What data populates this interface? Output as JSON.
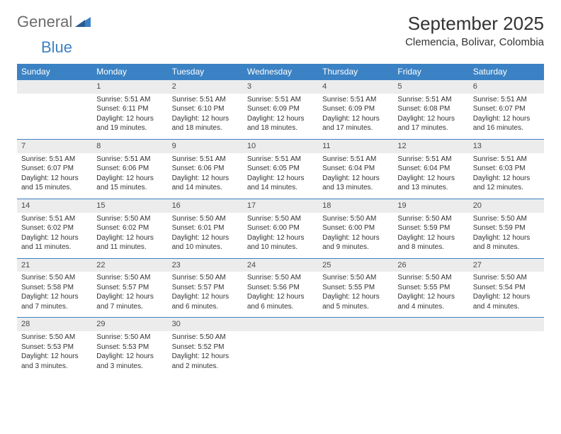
{
  "logo": {
    "text1": "General",
    "text2": "Blue"
  },
  "title": "September 2025",
  "location": "Clemencia, Bolivar, Colombia",
  "day_headers": [
    "Sunday",
    "Monday",
    "Tuesday",
    "Wednesday",
    "Thursday",
    "Friday",
    "Saturday"
  ],
  "colors": {
    "header_bg": "#3b82c4",
    "header_text": "#ffffff",
    "daynum_bg": "#ececec",
    "body_text": "#333333",
    "rule": "#3b82c4"
  },
  "weeks": [
    {
      "nums": [
        "",
        "1",
        "2",
        "3",
        "4",
        "5",
        "6"
      ],
      "info": [
        [],
        [
          "Sunrise: 5:51 AM",
          "Sunset: 6:11 PM",
          "Daylight: 12 hours",
          "and 19 minutes."
        ],
        [
          "Sunrise: 5:51 AM",
          "Sunset: 6:10 PM",
          "Daylight: 12 hours",
          "and 18 minutes."
        ],
        [
          "Sunrise: 5:51 AM",
          "Sunset: 6:09 PM",
          "Daylight: 12 hours",
          "and 18 minutes."
        ],
        [
          "Sunrise: 5:51 AM",
          "Sunset: 6:09 PM",
          "Daylight: 12 hours",
          "and 17 minutes."
        ],
        [
          "Sunrise: 5:51 AM",
          "Sunset: 6:08 PM",
          "Daylight: 12 hours",
          "and 17 minutes."
        ],
        [
          "Sunrise: 5:51 AM",
          "Sunset: 6:07 PM",
          "Daylight: 12 hours",
          "and 16 minutes."
        ]
      ]
    },
    {
      "nums": [
        "7",
        "8",
        "9",
        "10",
        "11",
        "12",
        "13"
      ],
      "info": [
        [
          "Sunrise: 5:51 AM",
          "Sunset: 6:07 PM",
          "Daylight: 12 hours",
          "and 15 minutes."
        ],
        [
          "Sunrise: 5:51 AM",
          "Sunset: 6:06 PM",
          "Daylight: 12 hours",
          "and 15 minutes."
        ],
        [
          "Sunrise: 5:51 AM",
          "Sunset: 6:06 PM",
          "Daylight: 12 hours",
          "and 14 minutes."
        ],
        [
          "Sunrise: 5:51 AM",
          "Sunset: 6:05 PM",
          "Daylight: 12 hours",
          "and 14 minutes."
        ],
        [
          "Sunrise: 5:51 AM",
          "Sunset: 6:04 PM",
          "Daylight: 12 hours",
          "and 13 minutes."
        ],
        [
          "Sunrise: 5:51 AM",
          "Sunset: 6:04 PM",
          "Daylight: 12 hours",
          "and 13 minutes."
        ],
        [
          "Sunrise: 5:51 AM",
          "Sunset: 6:03 PM",
          "Daylight: 12 hours",
          "and 12 minutes."
        ]
      ]
    },
    {
      "nums": [
        "14",
        "15",
        "16",
        "17",
        "18",
        "19",
        "20"
      ],
      "info": [
        [
          "Sunrise: 5:51 AM",
          "Sunset: 6:02 PM",
          "Daylight: 12 hours",
          "and 11 minutes."
        ],
        [
          "Sunrise: 5:50 AM",
          "Sunset: 6:02 PM",
          "Daylight: 12 hours",
          "and 11 minutes."
        ],
        [
          "Sunrise: 5:50 AM",
          "Sunset: 6:01 PM",
          "Daylight: 12 hours",
          "and 10 minutes."
        ],
        [
          "Sunrise: 5:50 AM",
          "Sunset: 6:00 PM",
          "Daylight: 12 hours",
          "and 10 minutes."
        ],
        [
          "Sunrise: 5:50 AM",
          "Sunset: 6:00 PM",
          "Daylight: 12 hours",
          "and 9 minutes."
        ],
        [
          "Sunrise: 5:50 AM",
          "Sunset: 5:59 PM",
          "Daylight: 12 hours",
          "and 8 minutes."
        ],
        [
          "Sunrise: 5:50 AM",
          "Sunset: 5:59 PM",
          "Daylight: 12 hours",
          "and 8 minutes."
        ]
      ]
    },
    {
      "nums": [
        "21",
        "22",
        "23",
        "24",
        "25",
        "26",
        "27"
      ],
      "info": [
        [
          "Sunrise: 5:50 AM",
          "Sunset: 5:58 PM",
          "Daylight: 12 hours",
          "and 7 minutes."
        ],
        [
          "Sunrise: 5:50 AM",
          "Sunset: 5:57 PM",
          "Daylight: 12 hours",
          "and 7 minutes."
        ],
        [
          "Sunrise: 5:50 AM",
          "Sunset: 5:57 PM",
          "Daylight: 12 hours",
          "and 6 minutes."
        ],
        [
          "Sunrise: 5:50 AM",
          "Sunset: 5:56 PM",
          "Daylight: 12 hours",
          "and 6 minutes."
        ],
        [
          "Sunrise: 5:50 AM",
          "Sunset: 5:55 PM",
          "Daylight: 12 hours",
          "and 5 minutes."
        ],
        [
          "Sunrise: 5:50 AM",
          "Sunset: 5:55 PM",
          "Daylight: 12 hours",
          "and 4 minutes."
        ],
        [
          "Sunrise: 5:50 AM",
          "Sunset: 5:54 PM",
          "Daylight: 12 hours",
          "and 4 minutes."
        ]
      ]
    },
    {
      "nums": [
        "28",
        "29",
        "30",
        "",
        "",
        "",
        ""
      ],
      "info": [
        [
          "Sunrise: 5:50 AM",
          "Sunset: 5:53 PM",
          "Daylight: 12 hours",
          "and 3 minutes."
        ],
        [
          "Sunrise: 5:50 AM",
          "Sunset: 5:53 PM",
          "Daylight: 12 hours",
          "and 3 minutes."
        ],
        [
          "Sunrise: 5:50 AM",
          "Sunset: 5:52 PM",
          "Daylight: 12 hours",
          "and 2 minutes."
        ],
        [],
        [],
        [],
        []
      ]
    }
  ]
}
